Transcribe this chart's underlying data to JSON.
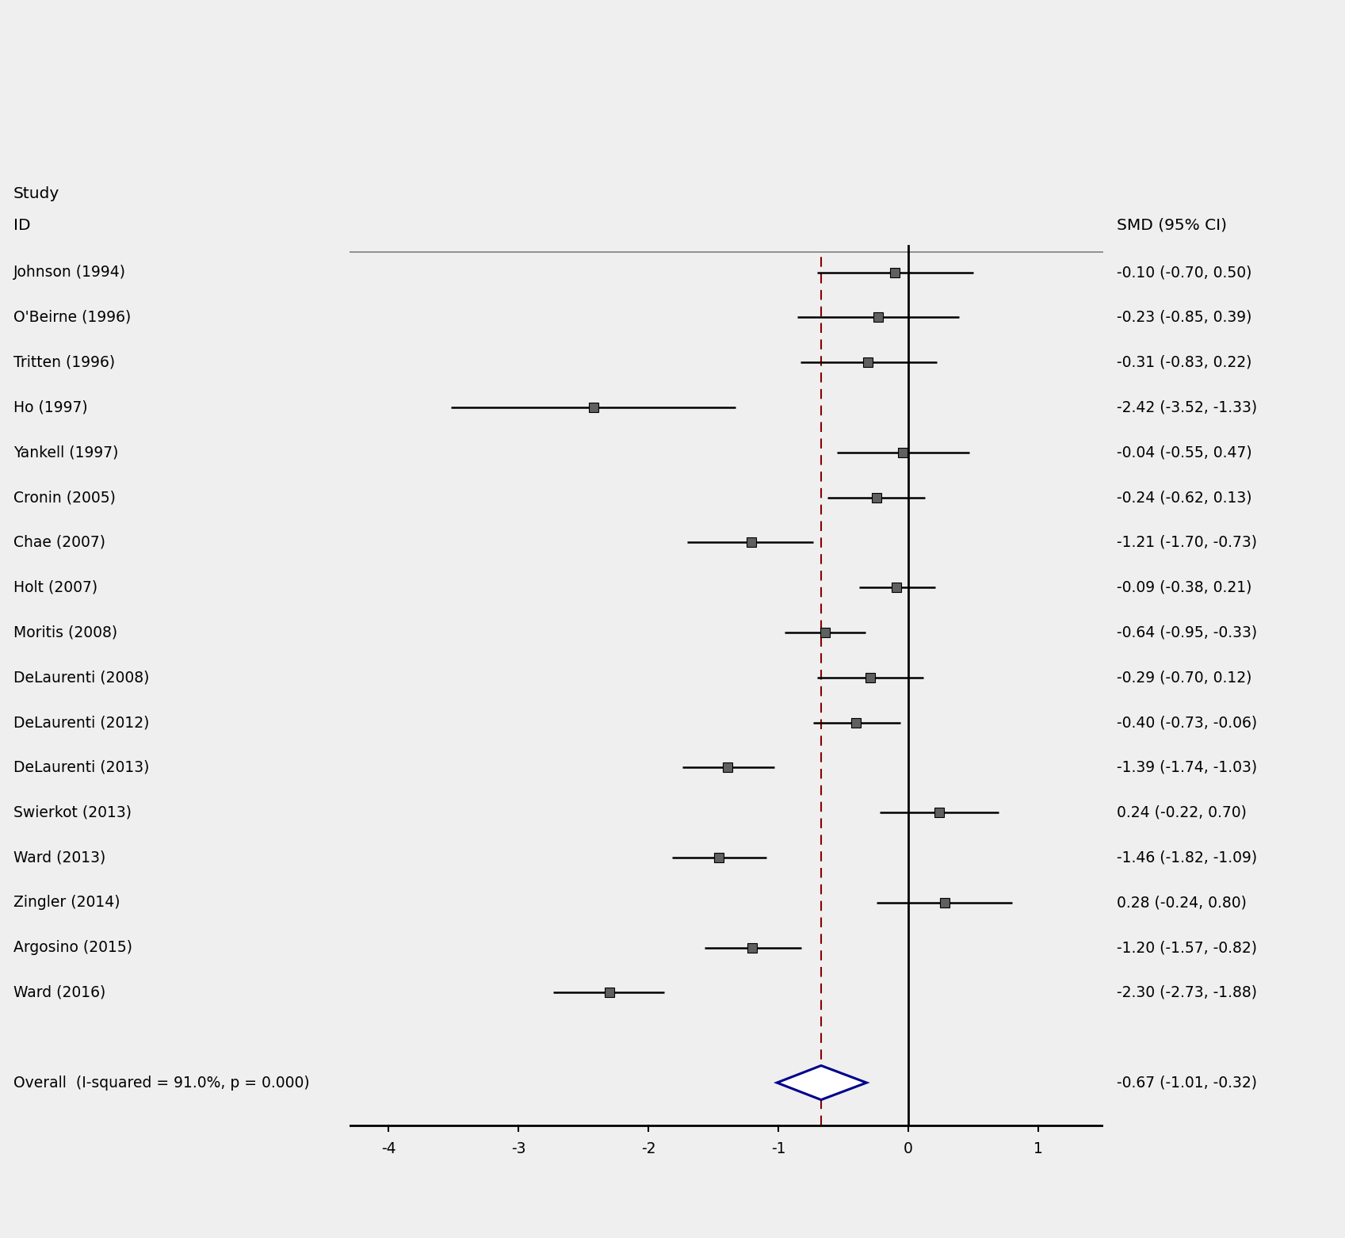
{
  "studies": [
    {
      "label": "Johnson (1994)",
      "smd": -0.1,
      "ci_lo": -0.7,
      "ci_hi": 0.5,
      "text": "-0.10 (-0.70, 0.50)"
    },
    {
      "label": "O'Beirne (1996)",
      "smd": -0.23,
      "ci_lo": -0.85,
      "ci_hi": 0.39,
      "text": "-0.23 (-0.85, 0.39)"
    },
    {
      "label": "Tritten (1996)",
      "smd": -0.31,
      "ci_lo": -0.83,
      "ci_hi": 0.22,
      "text": "-0.31 (-0.83, 0.22)"
    },
    {
      "label": "Ho (1997)",
      "smd": -2.42,
      "ci_lo": -3.52,
      "ci_hi": -1.33,
      "text": "-2.42 (-3.52, -1.33)"
    },
    {
      "label": "Yankell (1997)",
      "smd": -0.04,
      "ci_lo": -0.55,
      "ci_hi": 0.47,
      "text": "-0.04 (-0.55, 0.47)"
    },
    {
      "label": "Cronin (2005)",
      "smd": -0.24,
      "ci_lo": -0.62,
      "ci_hi": 0.13,
      "text": "-0.24 (-0.62, 0.13)"
    },
    {
      "label": "Chae (2007)",
      "smd": -1.21,
      "ci_lo": -1.7,
      "ci_hi": -0.73,
      "text": "-1.21 (-1.70, -0.73)"
    },
    {
      "label": "Holt (2007)",
      "smd": -0.09,
      "ci_lo": -0.38,
      "ci_hi": 0.21,
      "text": "-0.09 (-0.38, 0.21)"
    },
    {
      "label": "Moritis (2008)",
      "smd": -0.64,
      "ci_lo": -0.95,
      "ci_hi": -0.33,
      "text": "-0.64 (-0.95, -0.33)"
    },
    {
      "label": "DeLaurenti (2008)",
      "smd": -0.29,
      "ci_lo": -0.7,
      "ci_hi": 0.12,
      "text": "-0.29 (-0.70, 0.12)"
    },
    {
      "label": "DeLaurenti (2012)",
      "smd": -0.4,
      "ci_lo": -0.73,
      "ci_hi": -0.06,
      "text": "-0.40 (-0.73, -0.06)"
    },
    {
      "label": "DeLaurenti (2013)",
      "smd": -1.39,
      "ci_lo": -1.74,
      "ci_hi": -1.03,
      "text": "-1.39 (-1.74, -1.03)"
    },
    {
      "label": "Swierkot (2013)",
      "smd": 0.24,
      "ci_lo": -0.22,
      "ci_hi": 0.7,
      "text": "0.24 (-0.22, 0.70)"
    },
    {
      "label": "Ward (2013)",
      "smd": -1.46,
      "ci_lo": -1.82,
      "ci_hi": -1.09,
      "text": "-1.46 (-1.82, -1.09)"
    },
    {
      "label": "Zingler (2014)",
      "smd": 0.28,
      "ci_lo": -0.24,
      "ci_hi": 0.8,
      "text": "0.28 (-0.24, 0.80)"
    },
    {
      "label": "Argosino (2015)",
      "smd": -1.2,
      "ci_lo": -1.57,
      "ci_hi": -0.82,
      "text": "-1.20 (-1.57, -0.82)"
    },
    {
      "label": "Ward (2016)",
      "smd": -2.3,
      "ci_lo": -2.73,
      "ci_hi": -1.88,
      "text": "-2.30 (-2.73, -1.88)"
    }
  ],
  "overall": {
    "label": "Overall  (I-squared = 91.0%, p = 0.000)",
    "smd": -0.67,
    "ci_lo": -1.01,
    "ci_hi": -0.32,
    "text": "-0.67 (-1.01, -0.32)"
  },
  "null_line": -0.67,
  "zero_line": 0.0,
  "xlim": [
    -4.3,
    1.5
  ],
  "xticks": [
    -4,
    -3,
    -2,
    -1,
    0,
    1
  ],
  "header_study": "Study",
  "header_id": "ID",
  "header_smd": "SMD (95% CI)",
  "bg_color": "#efefef",
  "diamond_color": "#00008B",
  "dashed_line_color": "#8B0000",
  "marker_color": "#606060",
  "marker_edge_color": "#000000",
  "ci_line_color": "#000000",
  "zero_line_color": "#000000",
  "fontsize": 13.5,
  "fontsize_header": 14.5
}
